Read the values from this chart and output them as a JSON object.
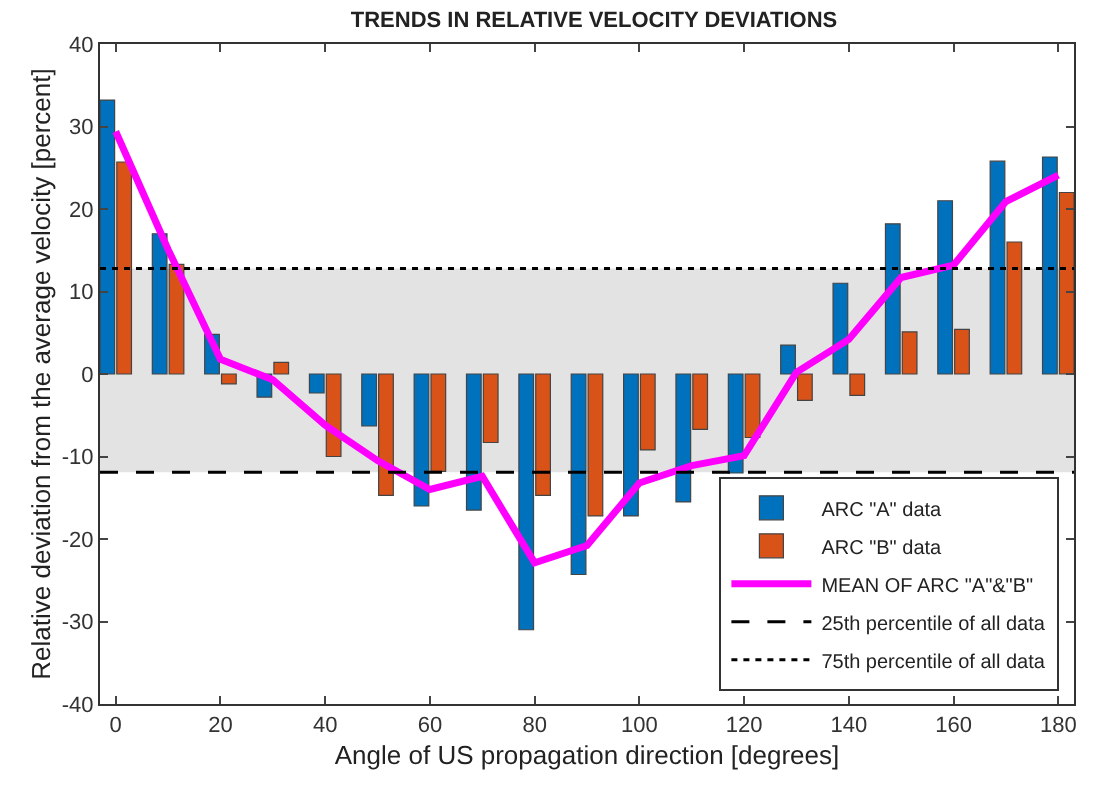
{
  "chart_data": {
    "type": "bar",
    "title": "TRENDS IN RELATIVE VELOCITY DEVIATIONS",
    "xlabel": "Angle of US propagation direction [degrees]",
    "ylabel": "Relative deviation from the average velocity [percent]",
    "x": [
      0,
      10,
      20,
      30,
      40,
      50,
      60,
      70,
      80,
      90,
      100,
      110,
      120,
      130,
      140,
      150,
      160,
      170,
      180
    ],
    "series": [
      {
        "name": "ARC \"A\" data",
        "color": "#0072bd",
        "values": [
          33.2,
          17,
          4.8,
          -2.8,
          -2.3,
          -6.3,
          -16,
          -16.5,
          -31,
          -24.3,
          -17.2,
          -15.5,
          -12,
          3.5,
          11,
          18.2,
          21,
          25.8,
          26.3
        ]
      },
      {
        "name": "ARC \"B\" data",
        "color": "#d95319",
        "values": [
          25.7,
          13.3,
          -1.2,
          1.4,
          -10,
          -14.7,
          -11.8,
          -8.3,
          -14.7,
          -17.2,
          -9.2,
          -6.7,
          -7.7,
          -3.2,
          -2.6,
          5.1,
          5.4,
          16,
          22
        ]
      },
      {
        "name": "MEAN OF ARC \"A\"&\"B\"",
        "type": "line",
        "color": "#ff00ff",
        "values": [
          29.4,
          15.1,
          1.8,
          -0.7,
          -6.2,
          -10.5,
          -14,
          -12.4,
          -22.9,
          -20.8,
          -13.2,
          -11.1,
          -9.9,
          0.2,
          4.2,
          11.7,
          13.2,
          20.9,
          24.1
        ]
      }
    ],
    "ref_lines": [
      {
        "axis": "y",
        "value": -11.9,
        "label": "25th percentile of all data",
        "color": "#000000",
        "line_style": "dashed"
      },
      {
        "axis": "y",
        "value": 12.8,
        "label": "75th percentile of all data",
        "color": "#000000",
        "line_style": "dotted"
      }
    ],
    "bands": [
      {
        "axis": "y",
        "from": -11.9,
        "to": 12.8,
        "color": "#e3e3e3"
      }
    ],
    "xlim": [
      -3,
      183
    ],
    "xticks": [
      0,
      20,
      40,
      60,
      80,
      100,
      120,
      140,
      160,
      180
    ],
    "ylim": [
      -40,
      40
    ],
    "yticks": [
      -40,
      -30,
      -20,
      -10,
      0,
      10,
      20,
      30,
      40
    ],
    "grid": false,
    "legend": "bottom right",
    "marker": "none",
    "line_style": "solid"
  }
}
